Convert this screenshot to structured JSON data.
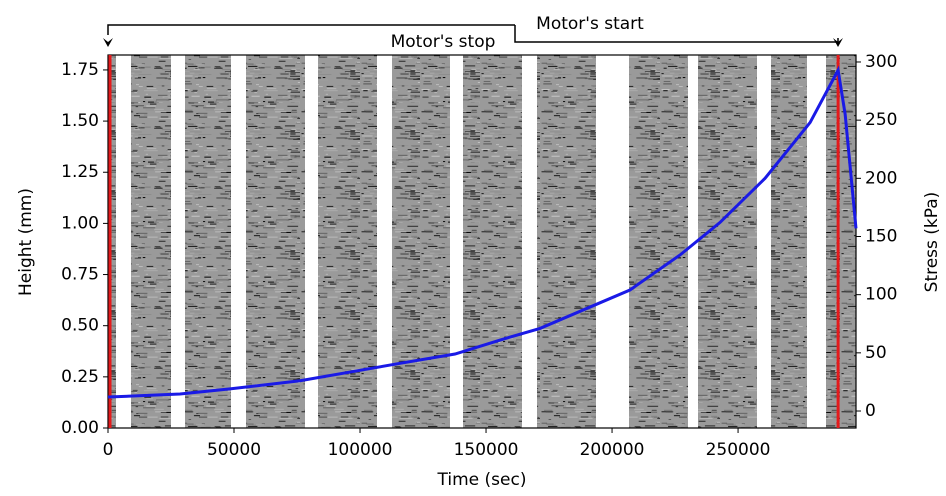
{
  "chart_data": {
    "type": "line",
    "x_label": "Time (sec)",
    "y_label": "Height (mm)",
    "y2_label": "Stress (kPa)",
    "annotations": [
      "Motor's start",
      "Motor's stop"
    ],
    "xlim": [
      0,
      296800
    ],
    "xticks": [
      0,
      50000,
      100000,
      150000,
      200000,
      250000
    ],
    "ylim": [
      0,
      1.823
    ],
    "yticks": [
      {
        "value": 0,
        "label": "0.00"
      },
      {
        "value": 0.25,
        "label": "0.25"
      },
      {
        "value": 0.5,
        "label": "0.50"
      },
      {
        "value": 0.75,
        "label": "0.75"
      },
      {
        "value": 1,
        "label": "1.00"
      },
      {
        "value": 1.25,
        "label": "1.25"
      },
      {
        "value": 1.5,
        "label": "1.50"
      },
      {
        "value": 1.75,
        "label": "1.75"
      }
    ],
    "y2lim": [
      -14.6,
      306
    ],
    "y2ticks": [
      0,
      50,
      100,
      150,
      200,
      250,
      300
    ],
    "vlines": {
      "color": "#e41a1c",
      "x": [
        800,
        289700
      ]
    },
    "series": [
      {
        "name": "Stress",
        "color": "#1a1ae6",
        "axis": "y2",
        "x": [
          0,
          28571,
          48400,
          76190,
          100000,
          115900,
          137700,
          155600,
          171400,
          195200,
          207100,
          226900,
          242800,
          260700,
          278600,
          289700,
          292500,
          296800
        ],
        "values": [
          12,
          14.6,
          19,
          26,
          35,
          41,
          49,
          61,
          71,
          93,
          104,
          134,
          162,
          200,
          248,
          293,
          255,
          157
        ]
      }
    ]
  }
}
